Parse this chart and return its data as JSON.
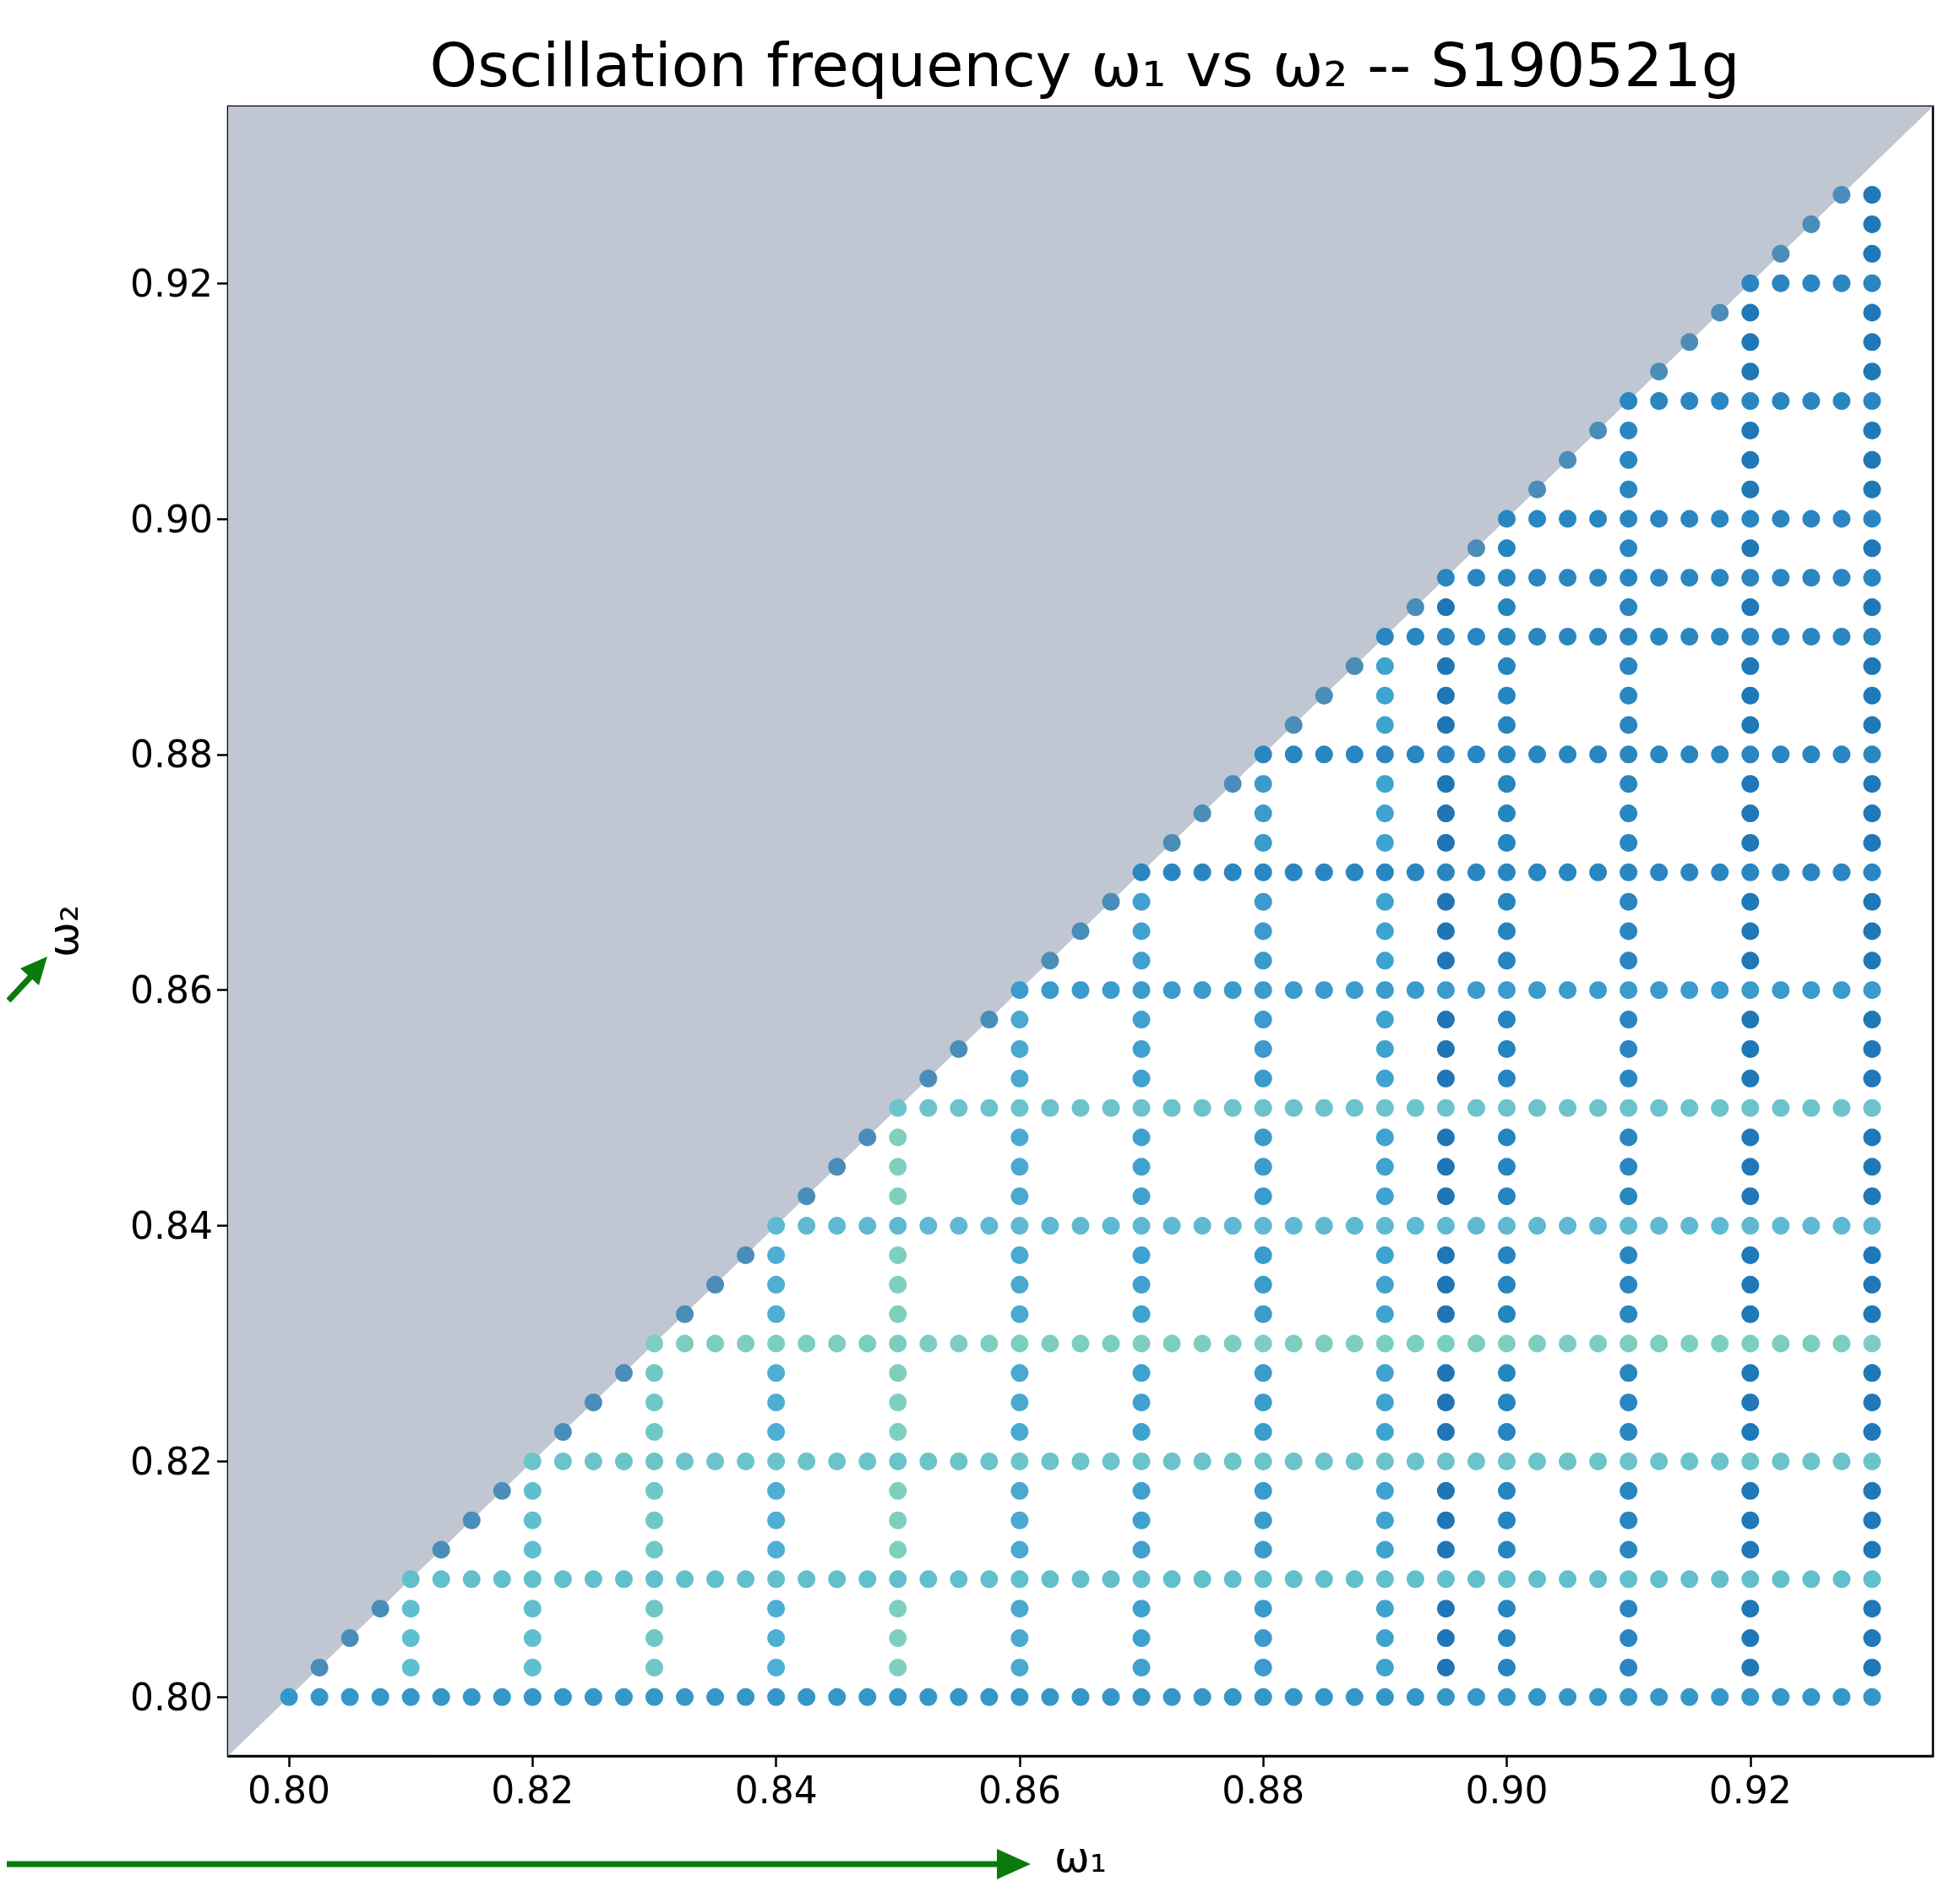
{
  "chart_data": {
    "type": "scatter",
    "title": "Oscillation frequency ω₁ vs ω₂ -- S190521g",
    "xlabel": "ω₁",
    "ylabel": "ω₂",
    "marker": "circle",
    "xlim": [
      0.795,
      0.935
    ],
    "ylim": [
      0.795,
      0.935
    ],
    "xticks": [
      {
        "value": 0.8,
        "label": "0.80"
      },
      {
        "value": 0.82,
        "label": "0.82"
      },
      {
        "value": 0.84,
        "label": "0.84"
      },
      {
        "value": 0.86,
        "label": "0.86"
      },
      {
        "value": 0.88,
        "label": "0.88"
      },
      {
        "value": 0.9,
        "label": "0.90"
      },
      {
        "value": 0.92,
        "label": "0.92"
      }
    ],
    "yticks": [
      {
        "value": 0.8,
        "label": "0.80"
      },
      {
        "value": 0.82,
        "label": "0.82"
      },
      {
        "value": 0.84,
        "label": "0.84"
      },
      {
        "value": 0.86,
        "label": "0.86"
      },
      {
        "value": 0.88,
        "label": "0.88"
      },
      {
        "value": 0.9,
        "label": "0.90"
      },
      {
        "value": 0.92,
        "label": "0.92"
      }
    ],
    "series": [
      {
        "type": "area",
        "marker": "none",
        "color": "#c0c7d2",
        "x": [
          0.795,
          0.935
        ],
        "values": [
          0.795,
          0.935
        ]
      },
      {
        "color": "#4a8db8",
        "x": [
          0.8025,
          0.805,
          0.8075,
          0.8125,
          0.815,
          0.8175,
          0.8225,
          0.825,
          0.8275,
          0.8325,
          0.835,
          0.8375,
          0.8425,
          0.845,
          0.8475,
          0.8525,
          0.855,
          0.8575,
          0.8625,
          0.865,
          0.8675,
          0.8725,
          0.875,
          0.8775,
          0.8825,
          0.885,
          0.8875,
          0.8925,
          0.8975,
          0.9025,
          0.905,
          0.9075,
          0.9125,
          0.915,
          0.9175,
          0.9225,
          0.925,
          0.9275
        ],
        "values": [
          0.8025,
          0.805,
          0.8075,
          0.8125,
          0.815,
          0.8175,
          0.8225,
          0.825,
          0.8275,
          0.8325,
          0.835,
          0.8375,
          0.8425,
          0.845,
          0.8475,
          0.8525,
          0.855,
          0.8575,
          0.8625,
          0.865,
          0.8675,
          0.8725,
          0.875,
          0.8775,
          0.8825,
          0.885,
          0.8875,
          0.8925,
          0.8975,
          0.9025,
          0.905,
          0.9075,
          0.9125,
          0.915,
          0.9175,
          0.9225,
          0.925,
          0.9275
        ]
      },
      {
        "color": "#3497c8",
        "x": [
          0.8,
          0.8025,
          0.805,
          0.8075,
          0.81,
          0.8125,
          0.815,
          0.8175,
          0.82,
          0.8225,
          0.825,
          0.8275,
          0.83,
          0.8325,
          0.835,
          0.8375,
          0.84,
          0.8425,
          0.845,
          0.8475,
          0.85,
          0.8525,
          0.855,
          0.8575,
          0.86,
          0.8625,
          0.865,
          0.8675,
          0.87,
          0.8725,
          0.875,
          0.8775,
          0.88,
          0.8825,
          0.885,
          0.8875,
          0.89,
          0.8925,
          0.895,
          0.8975,
          0.9,
          0.9025,
          0.905,
          0.9075,
          0.91,
          0.9125,
          0.915,
          0.9175,
          0.92,
          0.9225,
          0.925,
          0.9275,
          0.93
        ],
        "values": [
          0.8,
          0.8,
          0.8,
          0.8,
          0.8,
          0.8,
          0.8,
          0.8,
          0.8,
          0.8,
          0.8,
          0.8,
          0.8,
          0.8,
          0.8,
          0.8,
          0.8,
          0.8,
          0.8,
          0.8,
          0.8,
          0.8,
          0.8,
          0.8,
          0.8,
          0.8,
          0.8,
          0.8,
          0.8,
          0.8,
          0.8,
          0.8,
          0.8,
          0.8,
          0.8,
          0.8,
          0.8,
          0.8,
          0.8,
          0.8,
          0.8,
          0.8,
          0.8,
          0.8,
          0.8,
          0.8,
          0.8,
          0.8,
          0.8,
          0.8,
          0.8,
          0.8,
          0.8
        ]
      },
      {
        "color": "#62c0cc",
        "x": [
          0.81,
          0.8125,
          0.815,
          0.8175,
          0.82,
          0.8225,
          0.825,
          0.8275,
          0.83,
          0.8325,
          0.835,
          0.8375,
          0.84,
          0.8425,
          0.845,
          0.8475,
          0.85,
          0.8525,
          0.855,
          0.8575,
          0.86,
          0.8625,
          0.865,
          0.8675,
          0.87,
          0.8725,
          0.875,
          0.8775,
          0.88,
          0.8825,
          0.885,
          0.8875,
          0.89,
          0.8925,
          0.895,
          0.8975,
          0.9,
          0.9025,
          0.905,
          0.9075,
          0.91,
          0.9125,
          0.915,
          0.9175,
          0.92,
          0.9225,
          0.925,
          0.9275,
          0.93
        ],
        "values": [
          0.81,
          0.81,
          0.81,
          0.81,
          0.81,
          0.81,
          0.81,
          0.81,
          0.81,
          0.81,
          0.81,
          0.81,
          0.81,
          0.81,
          0.81,
          0.81,
          0.81,
          0.81,
          0.81,
          0.81,
          0.81,
          0.81,
          0.81,
          0.81,
          0.81,
          0.81,
          0.81,
          0.81,
          0.81,
          0.81,
          0.81,
          0.81,
          0.81,
          0.81,
          0.81,
          0.81,
          0.81,
          0.81,
          0.81,
          0.81,
          0.81,
          0.81,
          0.81,
          0.81,
          0.81,
          0.81,
          0.81,
          0.81,
          0.81
        ]
      },
      {
        "color": "#6bc4c9",
        "x": [
          0.82,
          0.8225,
          0.825,
          0.8275,
          0.83,
          0.8325,
          0.835,
          0.8375,
          0.84,
          0.8425,
          0.845,
          0.8475,
          0.85,
          0.8525,
          0.855,
          0.8575,
          0.86,
          0.8625,
          0.865,
          0.8675,
          0.87,
          0.8725,
          0.875,
          0.8775,
          0.88,
          0.8825,
          0.885,
          0.8875,
          0.89,
          0.8925,
          0.895,
          0.8975,
          0.9,
          0.9025,
          0.905,
          0.9075,
          0.91,
          0.9125,
          0.915,
          0.9175,
          0.92,
          0.9225,
          0.925,
          0.9275,
          0.93
        ],
        "values": [
          0.82,
          0.82,
          0.82,
          0.82,
          0.82,
          0.82,
          0.82,
          0.82,
          0.82,
          0.82,
          0.82,
          0.82,
          0.82,
          0.82,
          0.82,
          0.82,
          0.82,
          0.82,
          0.82,
          0.82,
          0.82,
          0.82,
          0.82,
          0.82,
          0.82,
          0.82,
          0.82,
          0.82,
          0.82,
          0.82,
          0.82,
          0.82,
          0.82,
          0.82,
          0.82,
          0.82,
          0.82,
          0.82,
          0.82,
          0.82,
          0.82,
          0.82,
          0.82,
          0.82,
          0.82
        ]
      },
      {
        "color": "#7ccfc0",
        "x": [
          0.83,
          0.8325,
          0.835,
          0.8375,
          0.84,
          0.8425,
          0.845,
          0.8475,
          0.85,
          0.8525,
          0.855,
          0.8575,
          0.86,
          0.8625,
          0.865,
          0.8675,
          0.87,
          0.8725,
          0.875,
          0.8775,
          0.88,
          0.8825,
          0.885,
          0.8875,
          0.89,
          0.8925,
          0.895,
          0.8975,
          0.9,
          0.9025,
          0.905,
          0.9075,
          0.91,
          0.9125,
          0.915,
          0.9175,
          0.92,
          0.9225,
          0.925,
          0.9275,
          0.93
        ],
        "values": [
          0.83,
          0.83,
          0.83,
          0.83,
          0.83,
          0.83,
          0.83,
          0.83,
          0.83,
          0.83,
          0.83,
          0.83,
          0.83,
          0.83,
          0.83,
          0.83,
          0.83,
          0.83,
          0.83,
          0.83,
          0.83,
          0.83,
          0.83,
          0.83,
          0.83,
          0.83,
          0.83,
          0.83,
          0.83,
          0.83,
          0.83,
          0.83,
          0.83,
          0.83,
          0.83,
          0.83,
          0.83,
          0.83,
          0.83,
          0.83,
          0.83
        ]
      },
      {
        "color": "#5fb9d2",
        "x": [
          0.84,
          0.8425,
          0.845,
          0.8475,
          0.85,
          0.8525,
          0.855,
          0.8575,
          0.86,
          0.8625,
          0.865,
          0.8675,
          0.87,
          0.8725,
          0.875,
          0.8775,
          0.88,
          0.8825,
          0.885,
          0.8875,
          0.89,
          0.8925,
          0.895,
          0.8975,
          0.9,
          0.9025,
          0.905,
          0.9075,
          0.91,
          0.9125,
          0.915,
          0.9175,
          0.92,
          0.9225,
          0.925,
          0.9275,
          0.93
        ],
        "values": [
          0.84,
          0.84,
          0.84,
          0.84,
          0.84,
          0.84,
          0.84,
          0.84,
          0.84,
          0.84,
          0.84,
          0.84,
          0.84,
          0.84,
          0.84,
          0.84,
          0.84,
          0.84,
          0.84,
          0.84,
          0.84,
          0.84,
          0.84,
          0.84,
          0.84,
          0.84,
          0.84,
          0.84,
          0.84,
          0.84,
          0.84,
          0.84,
          0.84,
          0.84,
          0.84,
          0.84,
          0.84
        ]
      },
      {
        "color": "#6cc3cc",
        "x": [
          0.85,
          0.8525,
          0.855,
          0.8575,
          0.86,
          0.8625,
          0.865,
          0.8675,
          0.87,
          0.8725,
          0.875,
          0.8775,
          0.88,
          0.8825,
          0.885,
          0.8875,
          0.89,
          0.8925,
          0.895,
          0.8975,
          0.9,
          0.9025,
          0.905,
          0.9075,
          0.91,
          0.9125,
          0.915,
          0.9175,
          0.92,
          0.9225,
          0.925,
          0.9275,
          0.93
        ],
        "values": [
          0.85,
          0.85,
          0.85,
          0.85,
          0.85,
          0.85,
          0.85,
          0.85,
          0.85,
          0.85,
          0.85,
          0.85,
          0.85,
          0.85,
          0.85,
          0.85,
          0.85,
          0.85,
          0.85,
          0.85,
          0.85,
          0.85,
          0.85,
          0.85,
          0.85,
          0.85,
          0.85,
          0.85,
          0.85,
          0.85,
          0.85,
          0.85,
          0.85
        ]
      },
      {
        "color": "#3a9bcc",
        "x": [
          0.86,
          0.8625,
          0.865,
          0.8675,
          0.87,
          0.8725,
          0.875,
          0.8775,
          0.88,
          0.8825,
          0.885,
          0.8875,
          0.89,
          0.8925,
          0.895,
          0.8975,
          0.9,
          0.9025,
          0.905,
          0.9075,
          0.91,
          0.9125,
          0.915,
          0.9175,
          0.92,
          0.9225,
          0.925,
          0.9275,
          0.93
        ],
        "values": [
          0.86,
          0.86,
          0.86,
          0.86,
          0.86,
          0.86,
          0.86,
          0.86,
          0.86,
          0.86,
          0.86,
          0.86,
          0.86,
          0.86,
          0.86,
          0.86,
          0.86,
          0.86,
          0.86,
          0.86,
          0.86,
          0.86,
          0.86,
          0.86,
          0.86,
          0.86,
          0.86,
          0.86,
          0.86
        ]
      },
      {
        "color": "#2a86c1",
        "x": [
          0.87,
          0.8725,
          0.875,
          0.8775,
          0.88,
          0.8825,
          0.885,
          0.8875,
          0.89,
          0.8925,
          0.895,
          0.8975,
          0.9,
          0.9025,
          0.905,
          0.9075,
          0.91,
          0.9125,
          0.915,
          0.9175,
          0.92,
          0.9225,
          0.925,
          0.9275,
          0.93
        ],
        "values": [
          0.87,
          0.87,
          0.87,
          0.87,
          0.87,
          0.87,
          0.87,
          0.87,
          0.87,
          0.87,
          0.87,
          0.87,
          0.87,
          0.87,
          0.87,
          0.87,
          0.87,
          0.87,
          0.87,
          0.87,
          0.87,
          0.87,
          0.87,
          0.87,
          0.87
        ]
      },
      {
        "color": "#2a86c1",
        "x": [
          0.88,
          0.8825,
          0.885,
          0.8875,
          0.89,
          0.8925,
          0.895,
          0.8975,
          0.9,
          0.9025,
          0.905,
          0.9075,
          0.91,
          0.9125,
          0.915,
          0.9175,
          0.92,
          0.9225,
          0.925,
          0.9275,
          0.93
        ],
        "values": [
          0.88,
          0.88,
          0.88,
          0.88,
          0.88,
          0.88,
          0.88,
          0.88,
          0.88,
          0.88,
          0.88,
          0.88,
          0.88,
          0.88,
          0.88,
          0.88,
          0.88,
          0.88,
          0.88,
          0.88,
          0.88
        ]
      },
      {
        "color": "#2a86c1",
        "x": [
          0.89,
          0.8925,
          0.895,
          0.8975,
          0.9,
          0.9025,
          0.905,
          0.9075,
          0.91,
          0.9125,
          0.915,
          0.9175,
          0.92,
          0.9225,
          0.925,
          0.9275,
          0.93
        ],
        "values": [
          0.89,
          0.89,
          0.89,
          0.89,
          0.89,
          0.89,
          0.89,
          0.89,
          0.89,
          0.89,
          0.89,
          0.89,
          0.89,
          0.89,
          0.89,
          0.89,
          0.89
        ]
      },
      {
        "color": "#2a86c1",
        "x": [
          0.895,
          0.8975,
          0.9,
          0.9025,
          0.905,
          0.9075,
          0.91,
          0.9125,
          0.915,
          0.9175,
          0.92,
          0.9225,
          0.925,
          0.9275,
          0.93
        ],
        "values": [
          0.895,
          0.895,
          0.895,
          0.895,
          0.895,
          0.895,
          0.895,
          0.895,
          0.895,
          0.895,
          0.895,
          0.895,
          0.895,
          0.895,
          0.895
        ]
      },
      {
        "color": "#2a86c1",
        "x": [
          0.9,
          0.9025,
          0.905,
          0.9075,
          0.91,
          0.9125,
          0.915,
          0.9175,
          0.92,
          0.9225,
          0.925,
          0.9275,
          0.93
        ],
        "values": [
          0.9,
          0.9,
          0.9,
          0.9,
          0.9,
          0.9,
          0.9,
          0.9,
          0.9,
          0.9,
          0.9,
          0.9,
          0.9
        ]
      },
      {
        "color": "#2a86c1",
        "x": [
          0.91,
          0.9125,
          0.915,
          0.9175,
          0.92,
          0.9225,
          0.925,
          0.9275,
          0.93
        ],
        "values": [
          0.91,
          0.91,
          0.91,
          0.91,
          0.91,
          0.91,
          0.91,
          0.91,
          0.91
        ]
      },
      {
        "color": "#2a86c1",
        "x": [
          0.92,
          0.9225,
          0.925,
          0.9275,
          0.93
        ],
        "values": [
          0.92,
          0.92,
          0.92,
          0.92,
          0.92
        ]
      },
      {
        "color": "#5dbfd0",
        "x": [
          0.81,
          0.81,
          0.81
        ],
        "values": [
          0.8025,
          0.805,
          0.8075
        ]
      },
      {
        "color": "#5fbfcf",
        "x": [
          0.82,
          0.82,
          0.82,
          0.82,
          0.82,
          0.82
        ],
        "values": [
          0.8025,
          0.805,
          0.8075,
          0.8125,
          0.815,
          0.8175
        ]
      },
      {
        "color": "#6fc8c6",
        "x": [
          0.83,
          0.83,
          0.83,
          0.83,
          0.83,
          0.83,
          0.83,
          0.83,
          0.83
        ],
        "values": [
          0.8025,
          0.805,
          0.8075,
          0.8125,
          0.815,
          0.8175,
          0.8225,
          0.825,
          0.8275
        ]
      },
      {
        "color": "#4eaed4",
        "x": [
          0.84,
          0.84,
          0.84,
          0.84,
          0.84,
          0.84,
          0.84,
          0.84,
          0.84,
          0.84,
          0.84,
          0.84
        ],
        "values": [
          0.8025,
          0.805,
          0.8075,
          0.8125,
          0.815,
          0.8175,
          0.8225,
          0.825,
          0.8275,
          0.8325,
          0.835,
          0.8375
        ]
      },
      {
        "color": "#7fcfbf",
        "x": [
          0.85,
          0.85,
          0.85,
          0.85,
          0.85,
          0.85,
          0.85,
          0.85,
          0.85,
          0.85,
          0.85,
          0.85,
          0.85,
          0.85,
          0.85
        ],
        "values": [
          0.8025,
          0.805,
          0.8075,
          0.8125,
          0.815,
          0.8175,
          0.8225,
          0.825,
          0.8275,
          0.8325,
          0.835,
          0.8375,
          0.8425,
          0.845,
          0.8475
        ]
      },
      {
        "color": "#4aa9d0",
        "x": [
          0.86,
          0.86,
          0.86,
          0.86,
          0.86,
          0.86,
          0.86,
          0.86,
          0.86,
          0.86,
          0.86,
          0.86,
          0.86,
          0.86,
          0.86,
          0.86,
          0.86,
          0.86
        ],
        "values": [
          0.8025,
          0.805,
          0.8075,
          0.8125,
          0.815,
          0.8175,
          0.8225,
          0.825,
          0.8275,
          0.8325,
          0.835,
          0.8375,
          0.8425,
          0.845,
          0.8475,
          0.8525,
          0.855,
          0.8575
        ]
      },
      {
        "color": "#3fa1cf",
        "x": [
          0.87,
          0.87,
          0.87,
          0.87,
          0.87,
          0.87,
          0.87,
          0.87,
          0.87,
          0.87,
          0.87,
          0.87,
          0.87,
          0.87,
          0.87,
          0.87,
          0.87,
          0.87,
          0.87,
          0.87,
          0.87
        ],
        "values": [
          0.8025,
          0.805,
          0.8075,
          0.8125,
          0.815,
          0.8175,
          0.8225,
          0.825,
          0.8275,
          0.8325,
          0.835,
          0.8375,
          0.8425,
          0.845,
          0.8475,
          0.8525,
          0.855,
          0.8575,
          0.8625,
          0.865,
          0.8675
        ]
      },
      {
        "color": "#3a9bcc",
        "x": [
          0.88,
          0.88,
          0.88,
          0.88,
          0.88,
          0.88,
          0.88,
          0.88,
          0.88,
          0.88,
          0.88,
          0.88,
          0.88,
          0.88,
          0.88,
          0.88,
          0.88,
          0.88,
          0.88,
          0.88,
          0.88,
          0.88,
          0.88,
          0.88
        ],
        "values": [
          0.8025,
          0.805,
          0.8075,
          0.8125,
          0.815,
          0.8175,
          0.8225,
          0.825,
          0.8275,
          0.8325,
          0.835,
          0.8375,
          0.8425,
          0.845,
          0.8475,
          0.8525,
          0.855,
          0.8575,
          0.8625,
          0.865,
          0.8675,
          0.8725,
          0.875,
          0.8775
        ]
      },
      {
        "color": "#3fa3cf",
        "x": [
          0.89,
          0.89,
          0.89,
          0.89,
          0.89,
          0.89,
          0.89,
          0.89,
          0.89,
          0.89,
          0.89,
          0.89,
          0.89,
          0.89,
          0.89,
          0.89,
          0.89,
          0.89,
          0.89,
          0.89,
          0.89,
          0.89,
          0.89,
          0.89,
          0.89,
          0.89,
          0.89
        ],
        "values": [
          0.8025,
          0.805,
          0.8075,
          0.8125,
          0.815,
          0.8175,
          0.8225,
          0.825,
          0.8275,
          0.8325,
          0.835,
          0.8375,
          0.8425,
          0.845,
          0.8475,
          0.8525,
          0.855,
          0.8575,
          0.8625,
          0.865,
          0.8675,
          0.8725,
          0.875,
          0.8775,
          0.8825,
          0.885,
          0.8875
        ]
      },
      {
        "color": "#1f75b5",
        "x": [
          0.895,
          0.895,
          0.895,
          0.895,
          0.895,
          0.895,
          0.895,
          0.895,
          0.895,
          0.895,
          0.895,
          0.895,
          0.895,
          0.895,
          0.895,
          0.895,
          0.895,
          0.895,
          0.895,
          0.895,
          0.895,
          0.895,
          0.895,
          0.895,
          0.895,
          0.895,
          0.895,
          0.895
        ],
        "values": [
          0.8025,
          0.805,
          0.8075,
          0.8125,
          0.815,
          0.8175,
          0.8225,
          0.825,
          0.8275,
          0.8325,
          0.835,
          0.8375,
          0.8425,
          0.845,
          0.8475,
          0.8525,
          0.855,
          0.8575,
          0.8625,
          0.865,
          0.8675,
          0.8725,
          0.875,
          0.8775,
          0.8825,
          0.885,
          0.8875,
          0.8925
        ]
      },
      {
        "color": "#2585c0",
        "x": [
          0.9,
          0.9,
          0.9,
          0.9,
          0.9,
          0.9,
          0.9,
          0.9,
          0.9,
          0.9,
          0.9,
          0.9,
          0.9,
          0.9,
          0.9,
          0.9,
          0.9,
          0.9,
          0.9,
          0.9,
          0.9,
          0.9,
          0.9,
          0.9,
          0.9,
          0.9,
          0.9,
          0.9,
          0.9
        ],
        "values": [
          0.8025,
          0.805,
          0.8075,
          0.8125,
          0.815,
          0.8175,
          0.8225,
          0.825,
          0.8275,
          0.8325,
          0.835,
          0.8375,
          0.8425,
          0.845,
          0.8475,
          0.8525,
          0.855,
          0.8575,
          0.8625,
          0.865,
          0.8675,
          0.8725,
          0.875,
          0.8775,
          0.8825,
          0.885,
          0.8875,
          0.8925,
          0.8975
        ]
      },
      {
        "color": "#2a86c1",
        "x": [
          0.91,
          0.91,
          0.91,
          0.91,
          0.91,
          0.91,
          0.91,
          0.91,
          0.91,
          0.91,
          0.91,
          0.91,
          0.91,
          0.91,
          0.91,
          0.91,
          0.91,
          0.91,
          0.91,
          0.91,
          0.91,
          0.91,
          0.91,
          0.91,
          0.91,
          0.91,
          0.91,
          0.91,
          0.91,
          0.91,
          0.91,
          0.91
        ],
        "values": [
          0.8025,
          0.805,
          0.8075,
          0.8125,
          0.815,
          0.8175,
          0.8225,
          0.825,
          0.8275,
          0.8325,
          0.835,
          0.8375,
          0.8425,
          0.845,
          0.8475,
          0.8525,
          0.855,
          0.8575,
          0.8625,
          0.865,
          0.8675,
          0.8725,
          0.875,
          0.8775,
          0.8825,
          0.885,
          0.8875,
          0.8925,
          0.8975,
          0.9025,
          0.905,
          0.9075
        ]
      },
      {
        "color": "#1f78b8",
        "x": [
          0.92,
          0.92,
          0.92,
          0.92,
          0.92,
          0.92,
          0.92,
          0.92,
          0.92,
          0.92,
          0.92,
          0.92,
          0.92,
          0.92,
          0.92,
          0.92,
          0.92,
          0.92,
          0.92,
          0.92,
          0.92,
          0.92,
          0.92,
          0.92,
          0.92,
          0.92,
          0.92,
          0.92,
          0.92,
          0.92,
          0.92,
          0.92,
          0.92,
          0.92,
          0.92
        ],
        "values": [
          0.8025,
          0.805,
          0.8075,
          0.8125,
          0.815,
          0.8175,
          0.8225,
          0.825,
          0.8275,
          0.8325,
          0.835,
          0.8375,
          0.8425,
          0.845,
          0.8475,
          0.8525,
          0.855,
          0.8575,
          0.8625,
          0.865,
          0.8675,
          0.8725,
          0.875,
          0.8775,
          0.8825,
          0.885,
          0.8875,
          0.8925,
          0.8975,
          0.9025,
          0.905,
          0.9075,
          0.9125,
          0.915,
          0.9175
        ]
      },
      {
        "color": "#1f78b8",
        "x": [
          0.93,
          0.93,
          0.93,
          0.93,
          0.93,
          0.93,
          0.93,
          0.93,
          0.93,
          0.93,
          0.93,
          0.93,
          0.93,
          0.93,
          0.93,
          0.93,
          0.93,
          0.93,
          0.93,
          0.93,
          0.93,
          0.93,
          0.93,
          0.93,
          0.93,
          0.93,
          0.93,
          0.93,
          0.93,
          0.93,
          0.93,
          0.93,
          0.93,
          0.93,
          0.93,
          0.93,
          0.93,
          0.93
        ],
        "values": [
          0.8025,
          0.805,
          0.8075,
          0.8125,
          0.815,
          0.8175,
          0.8225,
          0.825,
          0.8275,
          0.8325,
          0.835,
          0.8375,
          0.8425,
          0.845,
          0.8475,
          0.8525,
          0.855,
          0.8575,
          0.8625,
          0.865,
          0.8675,
          0.8725,
          0.875,
          0.8775,
          0.8825,
          0.885,
          0.8875,
          0.8925,
          0.8975,
          0.9025,
          0.905,
          0.9075,
          0.9125,
          0.915,
          0.9175,
          0.9225,
          0.925,
          0.9275
        ]
      }
    ]
  }
}
